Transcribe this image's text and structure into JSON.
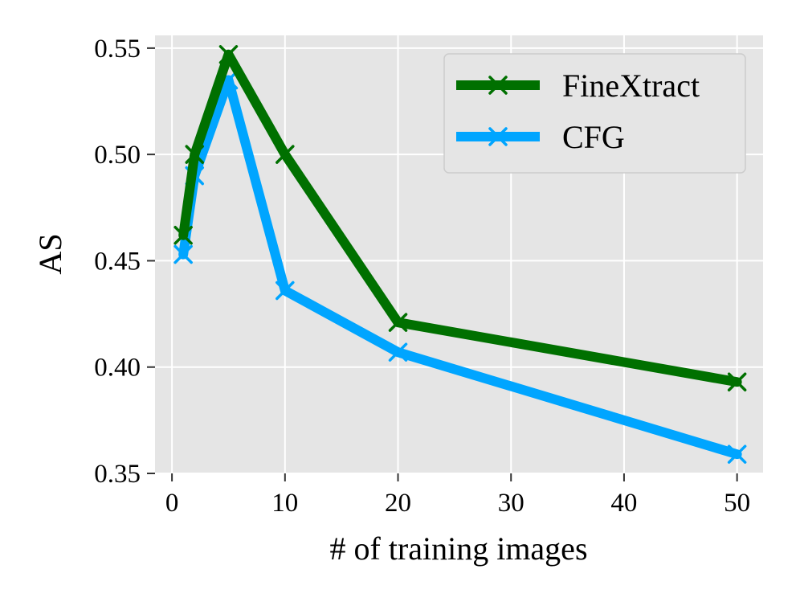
{
  "chart_data": {
    "type": "line",
    "title": "",
    "xlabel": "# of training images",
    "ylabel": "AS",
    "xlim": [
      -1.5,
      52.3
    ],
    "ylim": [
      0.35,
      0.556
    ],
    "xticks": [
      0,
      10,
      20,
      30,
      40,
      50
    ],
    "xtick_labels": [
      "0",
      "10",
      "20",
      "30",
      "40",
      "50"
    ],
    "yticks": [
      0.35,
      0.4,
      0.45,
      0.5,
      0.55
    ],
    "ytick_labels": [
      "0.35",
      "0.40",
      "0.45",
      "0.50",
      "0.55"
    ],
    "grid": true,
    "background": "#e5e5e5",
    "legend_position": "top-right",
    "x": [
      1,
      2,
      5,
      10,
      20,
      50
    ],
    "series": [
      {
        "name": "FineXtract",
        "color": "#007000",
        "marker": "x",
        "values": [
          0.462,
          0.5,
          0.547,
          0.5,
          0.421,
          0.393
        ]
      },
      {
        "name": "CFG",
        "color": "#00a5ff",
        "marker": "x",
        "values": [
          0.453,
          0.49,
          0.535,
          0.436,
          0.407,
          0.359
        ]
      }
    ]
  }
}
